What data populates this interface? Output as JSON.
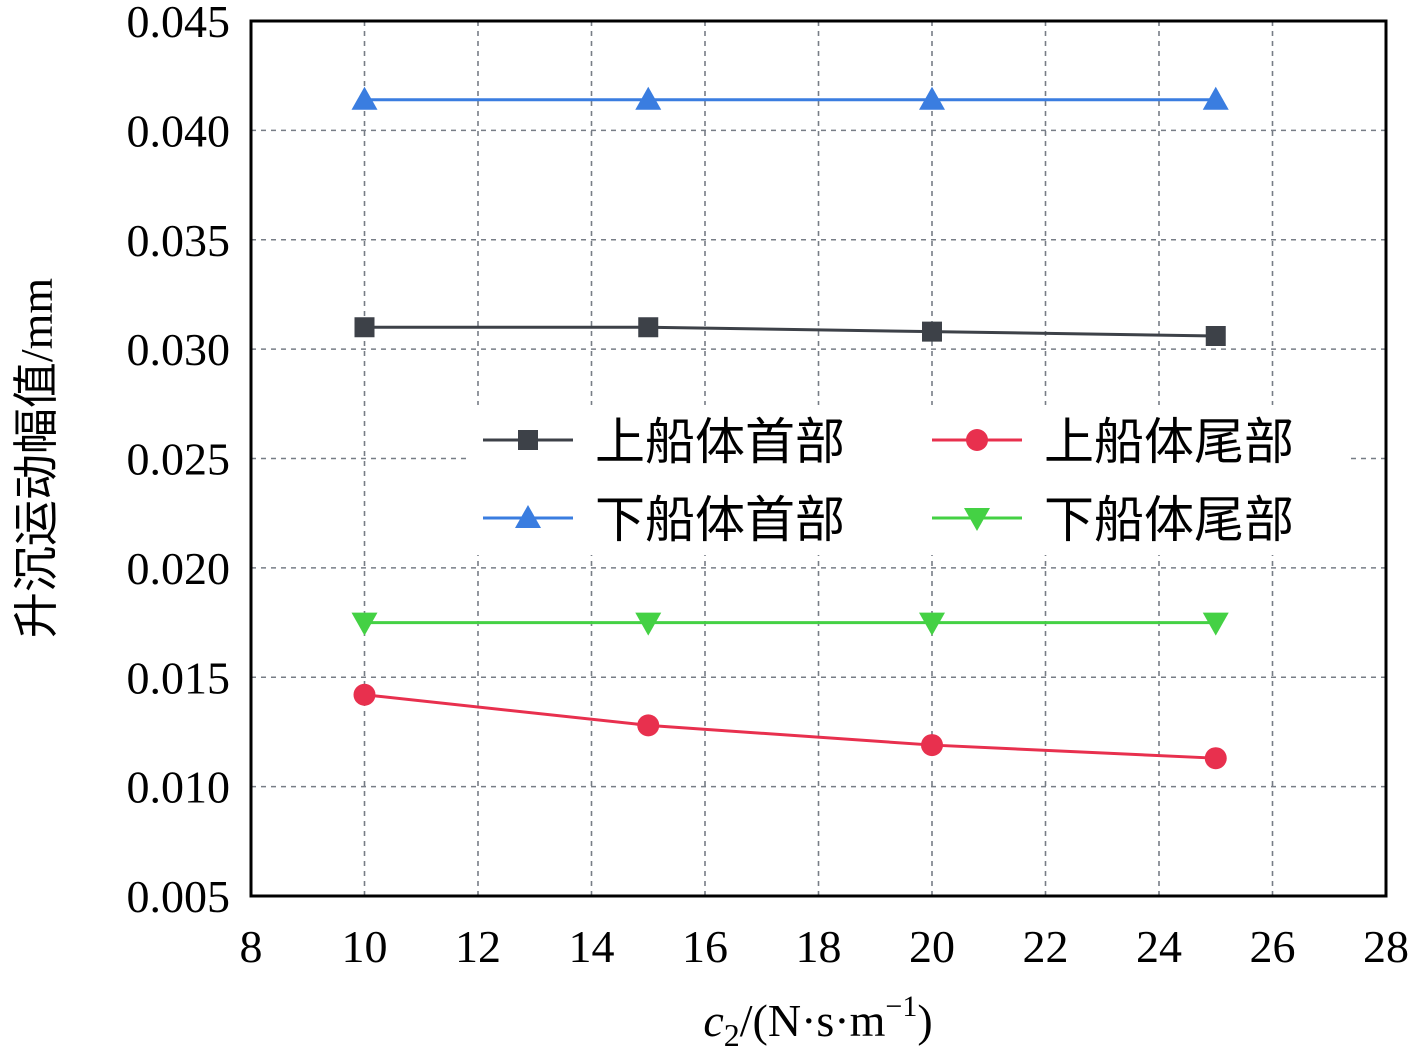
{
  "chart_data": {
    "type": "line",
    "title": "",
    "xlabel": {
      "var": "c",
      "sub": "2",
      "unit_main": "/(N·s·m",
      "unit_sup": "−1",
      "unit_close": ")"
    },
    "ylabel": "升沉运动幅值/mm",
    "xlim": [
      8,
      28
    ],
    "ylim": [
      0.005,
      0.045
    ],
    "xticks": [
      "8",
      "10",
      "12",
      "14",
      "16",
      "18",
      "20",
      "22",
      "24",
      "26",
      "28"
    ],
    "yticks": [
      "0.005",
      "0.010",
      "0.015",
      "0.020",
      "0.025",
      "0.030",
      "0.035",
      "0.040",
      "0.045"
    ],
    "grid": true,
    "legend_position": "center-right",
    "x": [
      10,
      15,
      20,
      25
    ],
    "series": [
      {
        "name": "上船体首部",
        "values": [
          0.031,
          0.031,
          0.0308,
          0.0306
        ],
        "color": "#3d4148",
        "marker": "square"
      },
      {
        "name": "上船体尾部",
        "values": [
          0.0142,
          0.0128,
          0.0119,
          0.0113
        ],
        "color": "#e8304e",
        "marker": "circle"
      },
      {
        "name": "下船体首部",
        "values": [
          0.0414,
          0.0414,
          0.0414,
          0.0414
        ],
        "color": "#3a7de0",
        "marker": "triangle-up"
      },
      {
        "name": "下船体尾部",
        "values": [
          0.0175,
          0.0175,
          0.0175,
          0.0175
        ],
        "color": "#44d144",
        "marker": "triangle-down"
      }
    ]
  }
}
